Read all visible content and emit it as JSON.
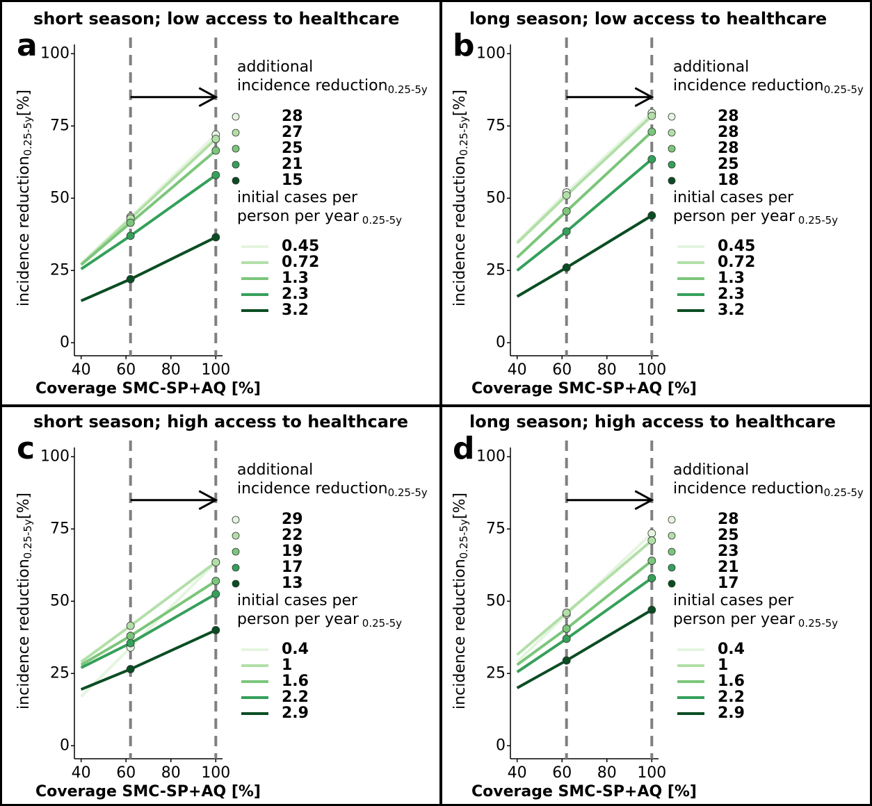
{
  "chart_data": [
    {
      "type": "line",
      "panel": "a",
      "title": "short season; low access to healthcare",
      "x_label": "Coverage SMC-SP+AQ [%]",
      "y_label": "incidence reduction",
      "y_label_sub": "0.25-5y",
      "y_label_unit": "[%]",
      "x": [
        40,
        62,
        100
      ],
      "xlim": [
        37,
        103
      ],
      "xticks": [
        40,
        60,
        80,
        100
      ],
      "ylim": [
        -4.5,
        103.2
      ],
      "yticks": [
        0,
        25,
        50,
        75,
        100
      ],
      "vlines": [
        62,
        100
      ],
      "arrow": {
        "from": 62,
        "to": 100,
        "y": 85
      },
      "legend_title": [
        "additional",
        "incidence reduction"
      ],
      "legend_sub": "0.25-5y",
      "legend2_title": [
        "initial cases per",
        "person per year"
      ],
      "legend2_sub": " 0.25-5y",
      "series": [
        {
          "name": "0.45",
          "color": "#e5f5e0",
          "additional": 28,
          "values": [
            27.5,
            43.5,
            72
          ]
        },
        {
          "name": "0.72",
          "color": "#b2dfa8",
          "additional": 27,
          "values": [
            27,
            43,
            70.5
          ]
        },
        {
          "name": "1.3",
          "color": "#7cc67b",
          "additional": 25,
          "values": [
            27,
            41.5,
            66.5
          ]
        },
        {
          "name": "2.3",
          "color": "#35a05a",
          "additional": 21,
          "values": [
            25.5,
            37,
            58
          ]
        },
        {
          "name": "3.2",
          "color": "#0b4d23",
          "additional": 15,
          "values": [
            14.5,
            22,
            36.5
          ]
        }
      ]
    },
    {
      "type": "line",
      "panel": "b",
      "title": "long season; low access to healthcare",
      "x_label": "Coverage SMC-SP+AQ [%]",
      "y_label": "incidence reduction",
      "y_label_sub": "0.25-5y",
      "y_label_unit": "[%]",
      "x": [
        40,
        62,
        100
      ],
      "xlim": [
        37,
        103
      ],
      "xticks": [
        40,
        60,
        80,
        100
      ],
      "ylim": [
        -4.5,
        103.2
      ],
      "yticks": [
        0,
        25,
        50,
        75,
        100
      ],
      "vlines": [
        62,
        100
      ],
      "arrow": {
        "from": 62,
        "to": 100,
        "y": 85
      },
      "legend_title": [
        "additional",
        "incidence reduction"
      ],
      "legend_sub": "0.25-5y",
      "legend2_title": [
        "initial cases per",
        "person per year"
      ],
      "legend2_sub": " 0.25-5y",
      "series": [
        {
          "name": "0.45",
          "color": "#e5f5e0",
          "additional": 28,
          "values": [
            35,
            52,
            79.5
          ]
        },
        {
          "name": "0.72",
          "color": "#b2dfa8",
          "additional": 28,
          "values": [
            34.5,
            51,
            78.5
          ]
        },
        {
          "name": "1.3",
          "color": "#7cc67b",
          "additional": 28,
          "values": [
            29.5,
            45.5,
            73
          ]
        },
        {
          "name": "2.3",
          "color": "#35a05a",
          "additional": 25,
          "values": [
            25,
            38.5,
            63.5
          ]
        },
        {
          "name": "3.2",
          "color": "#0b4d23",
          "additional": 18,
          "values": [
            16,
            26,
            44
          ]
        }
      ]
    },
    {
      "type": "line",
      "panel": "c",
      "title": "short season; high access to healthcare",
      "x_label": "Coverage SMC-SP+AQ [%]",
      "y_label": "incidence reduction",
      "y_label_sub": "0.25-5y",
      "y_label_unit": "[%]",
      "x": [
        40,
        62,
        100
      ],
      "xlim": [
        37,
        103
      ],
      "xticks": [
        40,
        60,
        80,
        100
      ],
      "ylim": [
        -4.5,
        103.2
      ],
      "yticks": [
        0,
        25,
        50,
        75,
        100
      ],
      "vlines": [
        62,
        100
      ],
      "arrow": {
        "from": 62,
        "to": 100,
        "y": 85
      },
      "legend_title": [
        "additional",
        "incidence reduction"
      ],
      "legend_sub": "0.25-5y",
      "legend2_title": [
        "initial cases per",
        "person per year"
      ],
      "legend2_sub": " 0.25-5y",
      "series": [
        {
          "name": "0.4",
          "color": "#e5f5e0",
          "additional": 29,
          "values": [
            17,
            34,
            63.5
          ]
        },
        {
          "name": "1",
          "color": "#b2dfa8",
          "additional": 22,
          "values": [
            29,
            41.5,
            63.5
          ]
        },
        {
          "name": "1.6",
          "color": "#7cc67b",
          "additional": 19,
          "values": [
            28,
            38,
            57
          ]
        },
        {
          "name": "2.2",
          "color": "#35a05a",
          "additional": 17,
          "values": [
            27,
            35.5,
            52.5
          ]
        },
        {
          "name": "2.9",
          "color": "#0b4d23",
          "additional": 13,
          "values": [
            19.5,
            26.5,
            40
          ]
        }
      ]
    },
    {
      "type": "line",
      "panel": "d",
      "title": "long season; high access to healthcare",
      "x_label": "Coverage SMC-SP+AQ [%]",
      "y_label": "incidence reduction",
      "y_label_sub": "0.25-5y",
      "y_label_unit": "[%]",
      "x": [
        40,
        62,
        100
      ],
      "xlim": [
        37,
        103
      ],
      "xticks": [
        40,
        60,
        80,
        100
      ],
      "ylim": [
        -4.5,
        103.2
      ],
      "yticks": [
        0,
        25,
        50,
        75,
        100
      ],
      "vlines": [
        62,
        100
      ],
      "arrow": {
        "from": 62,
        "to": 100,
        "y": 85
      },
      "legend_title": [
        "additional",
        "incidence reduction"
      ],
      "legend_sub": "0.25-5y",
      "legend2_title": [
        "initial cases per",
        "person per year"
      ],
      "legend2_sub": " 0.25-5y",
      "series": [
        {
          "name": "0.4",
          "color": "#e5f5e0",
          "additional": 28,
          "values": [
            29,
            45.5,
            73.5
          ]
        },
        {
          "name": "1",
          "color": "#b2dfa8",
          "additional": 25,
          "values": [
            31.5,
            46,
            71
          ]
        },
        {
          "name": "1.6",
          "color": "#7cc67b",
          "additional": 23,
          "values": [
            28,
            40.5,
            64
          ]
        },
        {
          "name": "2.2",
          "color": "#35a05a",
          "additional": 21,
          "values": [
            25.5,
            37,
            58
          ]
        },
        {
          "name": "2.9",
          "color": "#0b4d23",
          "additional": 17,
          "values": [
            20,
            29.5,
            47
          ]
        }
      ]
    }
  ]
}
